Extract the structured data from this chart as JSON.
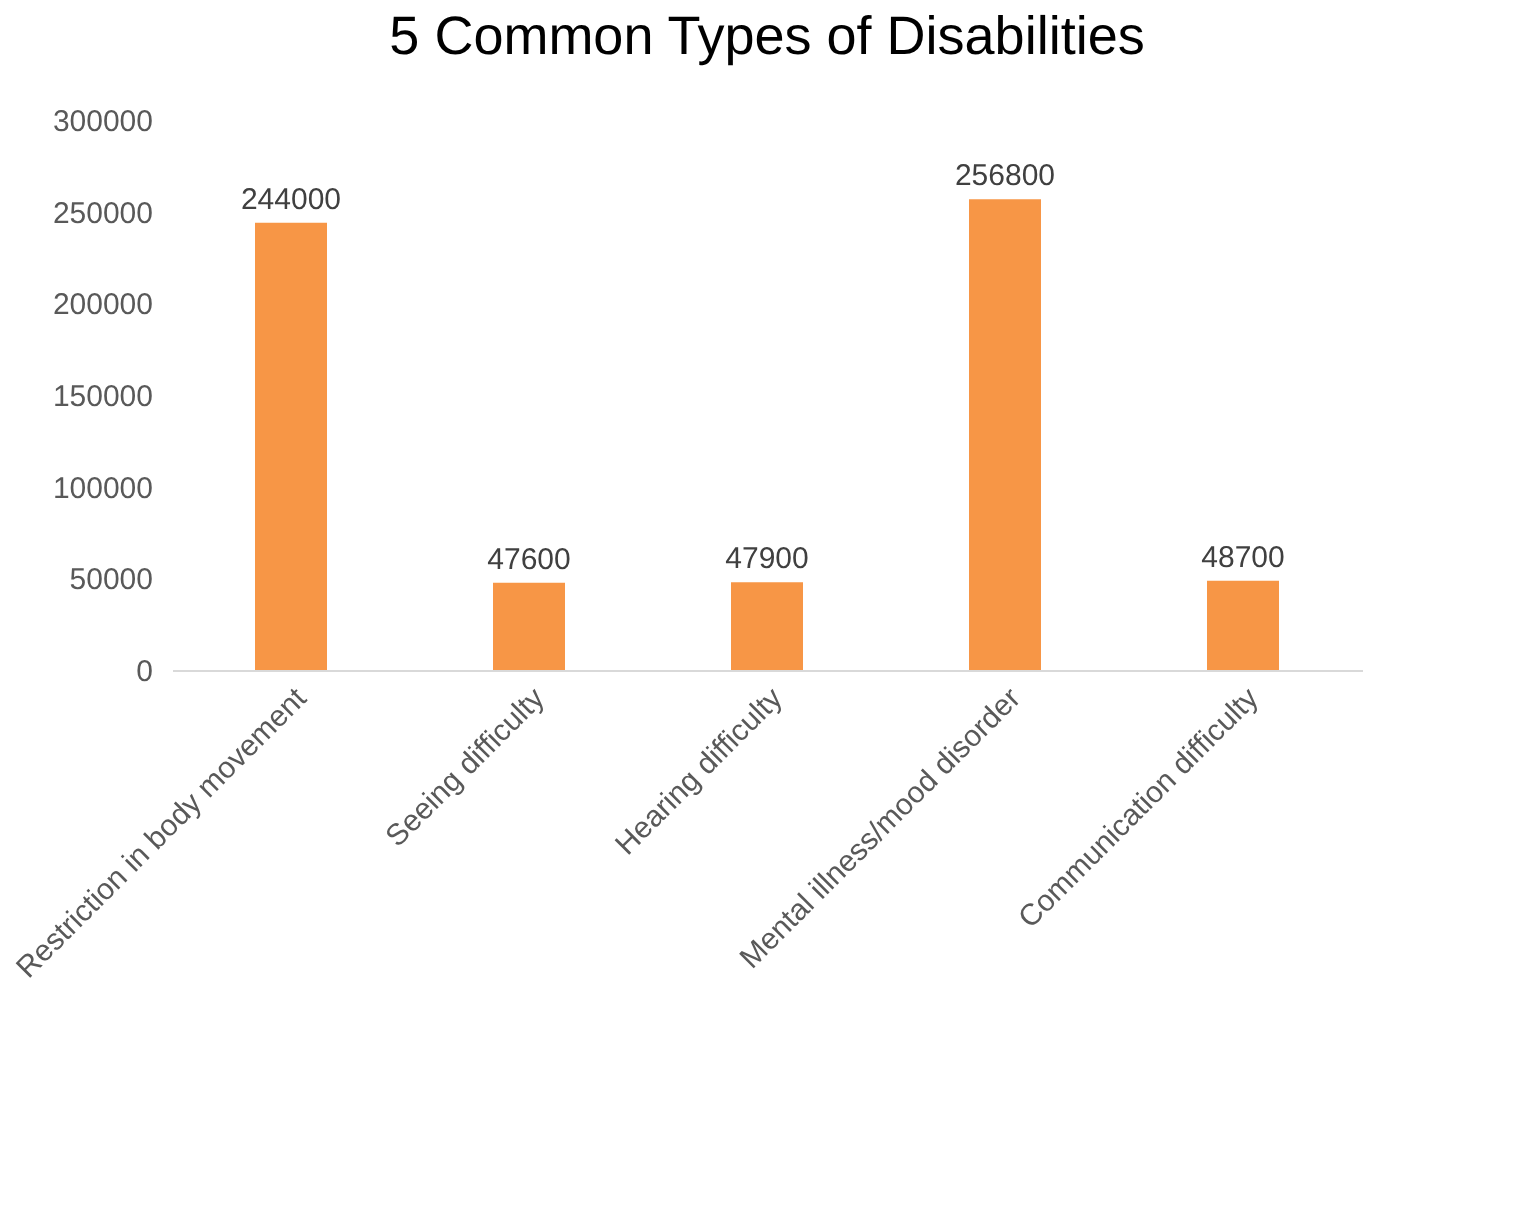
{
  "chart_data": {
    "type": "bar",
    "title": "5 Common Types of Disabilities",
    "categories": [
      "Restriction in body movement",
      "Seeing difficulty",
      "Hearing difficulty",
      "Mental illness/mood disorder",
      "Communication difficulty"
    ],
    "values": [
      244000,
      47600,
      47900,
      256800,
      48700
    ],
    "color": "#f79646",
    "ylim": [
      0,
      300000
    ],
    "yticks": [
      0,
      50000,
      100000,
      150000,
      200000,
      250000,
      300000
    ],
    "grid": false,
    "data_labels": true
  }
}
